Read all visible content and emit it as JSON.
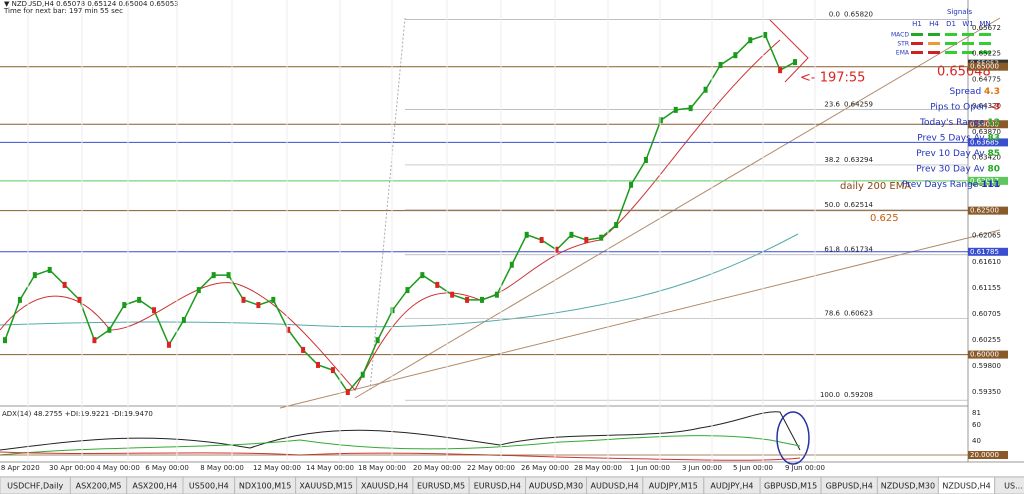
{
  "header": {
    "symbol_line": "▼ NZDUSD,H4  0.65078 0.65124 0.65004 0.65053",
    "timer": "Time for next bar: 197 min 55 sec"
  },
  "price_axis": {
    "ticks": [
      "0.65672",
      "0.65225",
      "0.64775",
      "0.64320",
      "0.63870",
      "0.63420",
      "0.62965",
      "0.62065",
      "0.61610",
      "0.61155",
      "0.60705",
      "0.60255",
      "0.59800",
      "0.59350"
    ],
    "tags": [
      {
        "label": "0.65053",
        "color": "#333333"
      },
      {
        "label": "0.65000",
        "color": "#8b5a2b"
      },
      {
        "label": "0.64000",
        "color": "#8b5a2b"
      },
      {
        "label": "0.63685",
        "color": "#3a4fd0"
      },
      {
        "label": "0.63017",
        "color": "#5cc85c"
      },
      {
        "label": "0.62500",
        "color": "#8b5a2b"
      },
      {
        "label": "0.61785",
        "color": "#3a4fd0"
      },
      {
        "label": "0.60000",
        "color": "#8b5a2b"
      }
    ]
  },
  "fibonacci": [
    {
      "level": "0.0",
      "price": "0.65820"
    },
    {
      "level": "23.6",
      "price": "0.64259"
    },
    {
      "level": "38.2",
      "price": "0.63294"
    },
    {
      "level": "50.0",
      "price": "0.62514"
    },
    {
      "level": "61.8",
      "price": "0.61734"
    },
    {
      "level": "78.6",
      "price": "0.60623"
    },
    {
      "level": "100.0",
      "price": "0.59208"
    }
  ],
  "price": {
    "color": "#1a9a1a",
    "closes": [
      0.6025,
      0.6095,
      0.6138,
      0.6147,
      0.6121,
      0.6095,
      0.6025,
      0.6043,
      0.6086,
      0.6095,
      0.6077,
      0.6017,
      0.606,
      0.6112,
      0.6138,
      0.6138,
      0.6095,
      0.6086,
      0.6095,
      0.6043,
      0.6008,
      0.5982,
      0.5973,
      0.5935,
      0.5965,
      0.6025,
      0.6077,
      0.6112,
      0.6138,
      0.6121,
      0.6104,
      0.6095,
      0.6095,
      0.6104,
      0.6156,
      0.6208,
      0.6199,
      0.6182,
      0.6208,
      0.6199,
      0.6203,
      0.6225,
      0.6295,
      0.6338,
      0.6407,
      0.6425,
      0.6428,
      0.646,
      0.6503,
      0.652,
      0.6546,
      0.6555,
      0.6494,
      0.6508
    ]
  },
  "annotations": {
    "countdown": "<- 197:55",
    "ema_label": "daily 200 EMA",
    "ema_value": "0.625"
  },
  "signals": {
    "title": "Signals",
    "columns": [
      "H1",
      "H4",
      "D1",
      "W1",
      "MN"
    ],
    "rows": [
      "MACD",
      "STR",
      "EMA"
    ]
  },
  "info": {
    "price": "0.65048",
    "lines": [
      {
        "label": "Spread",
        "value": "4.3"
      },
      {
        "label": "Pips to Open",
        "value": "-3"
      },
      {
        "label": "Today's Range",
        "value": "12"
      },
      {
        "label": "Prev 5 Days Av",
        "value": "83"
      },
      {
        "label": "Prev 10 Day Av",
        "value": "85"
      },
      {
        "label": "Prev 30 Day Av",
        "value": "80"
      },
      {
        "label": "Prev Days Range",
        "value": "111"
      }
    ]
  },
  "adx": {
    "label": "ADX(14) 48.2755 +DI:19.9221 -DI:19.9470",
    "ticks": [
      "81",
      "60",
      "40",
      "20"
    ],
    "tag": "20.0000"
  },
  "dates": [
    "28 Apr 2020",
    "30 Apr 00:00",
    "4 May 00:00",
    "6 May 00:00",
    "8 May 00:00",
    "12 May 00:00",
    "14 May 00:00",
    "18 May 00:00",
    "20 May 00:00",
    "22 May 00:00",
    "26 May 00:00",
    "28 May 00:00",
    "1 Jun 00:00",
    "3 Jun 00:00",
    "5 Jun 00:00",
    "9 Jun 00:00"
  ],
  "tabs": [
    "USDCHF,Daily",
    "ASX200,M5",
    "ASX200,H4",
    "US500,H4",
    "NDX100,M15",
    "XAUUSD,M15",
    "XAUUSD,H4",
    "EURUSD,M5",
    "EURUSD,H4",
    "AUDUSD,M30",
    "AUDUSD,H4",
    "AUDJPY,M15",
    "AUDJPY,H4",
    "GBPUSD,M15",
    "GBPUSD,H4",
    "NZDUSD,M30",
    "NZDUSD,H4",
    "US..."
  ],
  "active_tab": "NZDUSD,H4"
}
